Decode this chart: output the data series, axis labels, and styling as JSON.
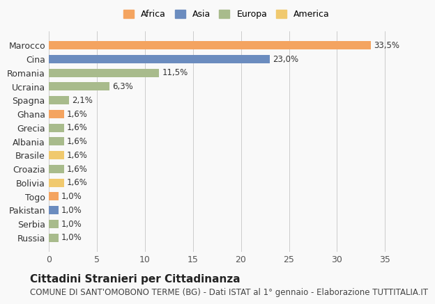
{
  "countries": [
    "Russia",
    "Serbia",
    "Pakistan",
    "Togo",
    "Bolivia",
    "Croazia",
    "Brasile",
    "Albania",
    "Grecia",
    "Ghana",
    "Spagna",
    "Ucraina",
    "Romania",
    "Cina",
    "Marocco"
  ],
  "values": [
    1.0,
    1.0,
    1.0,
    1.0,
    1.6,
    1.6,
    1.6,
    1.6,
    1.6,
    1.6,
    2.1,
    6.3,
    11.5,
    23.0,
    33.5
  ],
  "labels": [
    "1,0%",
    "1,0%",
    "1,0%",
    "1,0%",
    "1,6%",
    "1,6%",
    "1,6%",
    "1,6%",
    "1,6%",
    "1,6%",
    "2,1%",
    "6,3%",
    "11,5%",
    "23,0%",
    "33,5%"
  ],
  "continents": [
    "Europa",
    "Europa",
    "Asia",
    "Africa",
    "America",
    "Europa",
    "America",
    "Europa",
    "Europa",
    "Africa",
    "Europa",
    "Europa",
    "Europa",
    "Asia",
    "Africa"
  ],
  "colors": {
    "Africa": "#F4A460",
    "Asia": "#6B8CBF",
    "Europa": "#A8BB8C",
    "America": "#F0C96E"
  },
  "legend_order": [
    "Africa",
    "Asia",
    "Europa",
    "America"
  ],
  "title": "Cittadini Stranieri per Cittadinanza",
  "subtitle": "COMUNE DI SANT'OMOBONO TERME (BG) - Dati ISTAT al 1° gennaio - Elaborazione TUTTITALIA.IT",
  "xlim": [
    0,
    37
  ],
  "xticks": [
    0,
    5,
    10,
    15,
    20,
    25,
    30,
    35
  ],
  "bg_color": "#f9f9f9",
  "bar_height": 0.6,
  "title_fontsize": 11,
  "subtitle_fontsize": 8.5,
  "tick_fontsize": 9,
  "label_fontsize": 8.5,
  "legend_fontsize": 9
}
